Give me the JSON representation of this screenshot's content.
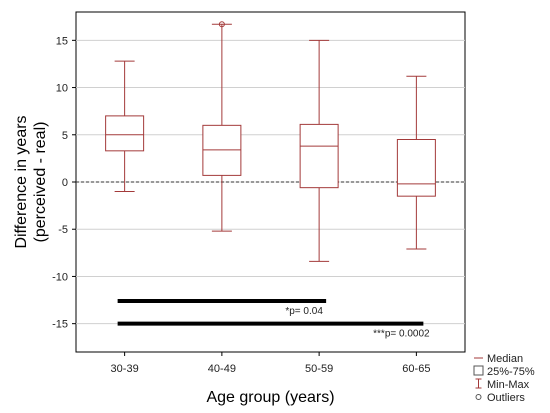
{
  "chart_data": {
    "type": "boxplot",
    "xlabel": "Age group (years)",
    "ylabel_line1": "Difference in years",
    "ylabel_line2": "(perceived - real)",
    "ylim": [
      -18,
      18
    ],
    "yticks": [
      -15,
      -10,
      -5,
      0,
      5,
      10,
      15
    ],
    "grid": true,
    "reference_line": 0,
    "box_color": "#a33a3a",
    "categories": [
      "30-39",
      "40-49",
      "50-59",
      "60-65"
    ],
    "boxes": [
      {
        "category": "30-39",
        "min": -1,
        "q1": 3.3,
        "median": 5.0,
        "q3": 7.0,
        "max": 12.8,
        "outliers": []
      },
      {
        "category": "40-49",
        "min": -5.2,
        "q1": 0.7,
        "median": 3.4,
        "q3": 6.0,
        "max": 16.7,
        "outliers": [
          16.7
        ]
      },
      {
        "category": "50-59",
        "min": -8.4,
        "q1": -0.6,
        "median": 3.8,
        "q3": 6.1,
        "max": 15.0,
        "outliers": []
      },
      {
        "category": "60-65",
        "min": -7.1,
        "q1": -1.5,
        "median": -0.2,
        "q3": 4.5,
        "max": 11.2,
        "outliers": []
      }
    ],
    "significance_bars": [
      {
        "from": "30-39",
        "to": "50-59",
        "y": -12.6,
        "label": "*p= 0.04"
      },
      {
        "from": "30-39",
        "to": "60-65",
        "y": -15.0,
        "label": "***p= 0.0002"
      }
    ],
    "legend": {
      "position": "bottom-right",
      "items": [
        {
          "symbol": "median",
          "label": "Median"
        },
        {
          "symbol": "box",
          "label": "25%-75%"
        },
        {
          "symbol": "whisker",
          "label": "Min-Max"
        },
        {
          "symbol": "outlier",
          "label": "Outliers"
        }
      ]
    }
  }
}
